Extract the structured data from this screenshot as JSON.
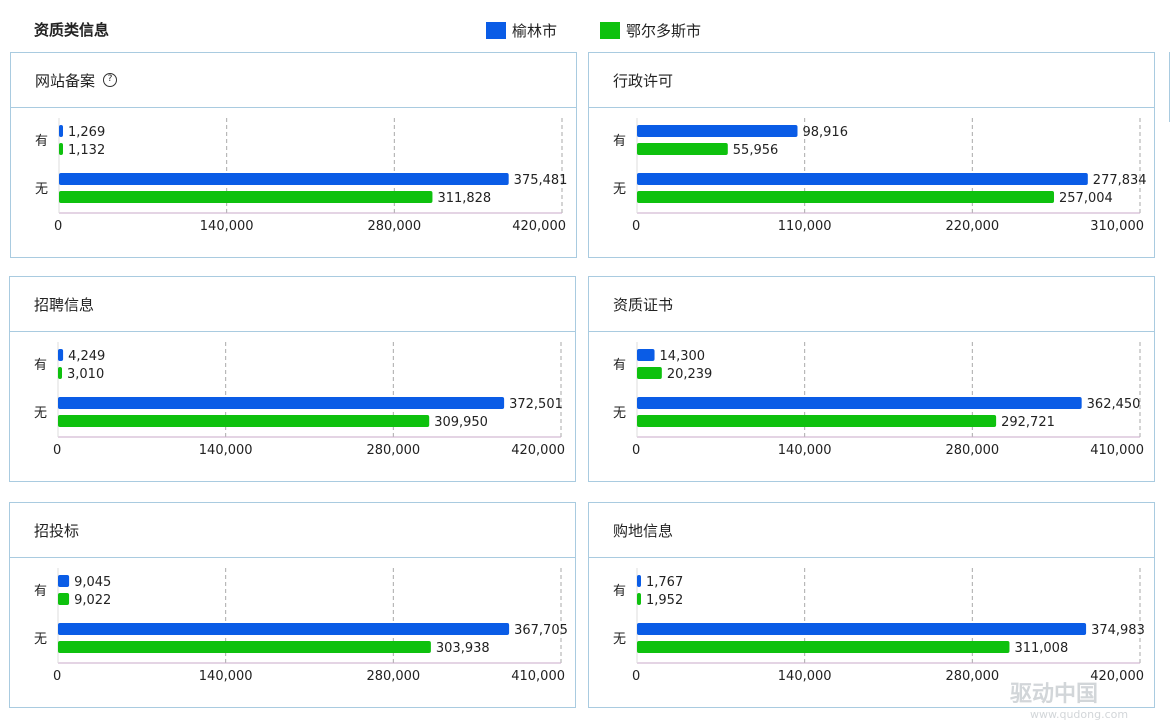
{
  "title": "资质类信息",
  "colors": {
    "series1": "#0a5ce6",
    "series2": "#0ec10e"
  },
  "legend": [
    "榆林市",
    "鄂尔多斯市"
  ],
  "watermark": {
    "name": "驱动中国",
    "url": "www.qudong.com"
  },
  "chart_data": [
    {
      "type": "bar",
      "orientation": "horizontal",
      "title": "网站备案",
      "has_help_icon": true,
      "categories": [
        "有",
        "无"
      ],
      "series": [
        {
          "name": "榆林市",
          "values": [
            1269,
            375481
          ]
        },
        {
          "name": "鄂尔多斯市",
          "values": [
            1132,
            311828
          ]
        }
      ],
      "xlim": [
        0,
        420000
      ],
      "xticks": [
        "0",
        "140,000",
        "280,000",
        "420,000"
      ],
      "labels": [
        [
          "1,269",
          "375,481"
        ],
        [
          "1,132",
          "311,828"
        ]
      ]
    },
    {
      "type": "bar",
      "orientation": "horizontal",
      "title": "行政许可",
      "categories": [
        "有",
        "无"
      ],
      "series": [
        {
          "name": "榆林市",
          "values": [
            98916,
            277834
          ]
        },
        {
          "name": "鄂尔多斯市",
          "values": [
            55956,
            257004
          ]
        }
      ],
      "xlim": [
        0,
        310000
      ],
      "xticks": [
        "0",
        "110,000",
        "220,000",
        "310,000"
      ],
      "labels": [
        [
          "98,916",
          "277,834"
        ],
        [
          "55,956",
          "257,004"
        ]
      ]
    },
    {
      "type": "bar",
      "orientation": "horizontal",
      "title": "招聘信息",
      "categories": [
        "有",
        "无"
      ],
      "series": [
        {
          "name": "榆林市",
          "values": [
            4249,
            372501
          ]
        },
        {
          "name": "鄂尔多斯市",
          "values": [
            3010,
            309950
          ]
        }
      ],
      "xlim": [
        0,
        420000
      ],
      "xticks": [
        "0",
        "140,000",
        "280,000",
        "420,000"
      ],
      "labels": [
        [
          "4,249",
          "372,501"
        ],
        [
          "3,010",
          "309,950"
        ]
      ]
    },
    {
      "type": "bar",
      "orientation": "horizontal",
      "title": "资质证书",
      "categories": [
        "有",
        "无"
      ],
      "series": [
        {
          "name": "榆林市",
          "values": [
            14300,
            362450
          ]
        },
        {
          "name": "鄂尔多斯市",
          "values": [
            20239,
            292721
          ]
        }
      ],
      "xlim": [
        0,
        410000
      ],
      "xticks": [
        "0",
        "140,000",
        "280,000",
        "410,000"
      ],
      "labels": [
        [
          "14,300",
          "362,450"
        ],
        [
          "20,239",
          "292,721"
        ]
      ]
    },
    {
      "type": "bar",
      "orientation": "horizontal",
      "title": "招投标",
      "categories": [
        "有",
        "无"
      ],
      "series": [
        {
          "name": "榆林市",
          "values": [
            9045,
            367705
          ]
        },
        {
          "name": "鄂尔多斯市",
          "values": [
            9022,
            303938
          ]
        }
      ],
      "xlim": [
        0,
        410000
      ],
      "xticks": [
        "0",
        "140,000",
        "280,000",
        "410,000"
      ],
      "labels": [
        [
          "9,045",
          "367,705"
        ],
        [
          "9,022",
          "303,938"
        ]
      ]
    },
    {
      "type": "bar",
      "orientation": "horizontal",
      "title": "购地信息",
      "categories": [
        "有",
        "无"
      ],
      "series": [
        {
          "name": "榆林市",
          "values": [
            1767,
            374983
          ]
        },
        {
          "name": "鄂尔多斯市",
          "values": [
            1952,
            311008
          ]
        }
      ],
      "xlim": [
        0,
        420000
      ],
      "xticks": [
        "0",
        "140,000",
        "280,000",
        "420,000"
      ],
      "labels": [
        [
          "1,767",
          "374,983"
        ],
        [
          "1,952",
          "311,008"
        ]
      ]
    }
  ]
}
